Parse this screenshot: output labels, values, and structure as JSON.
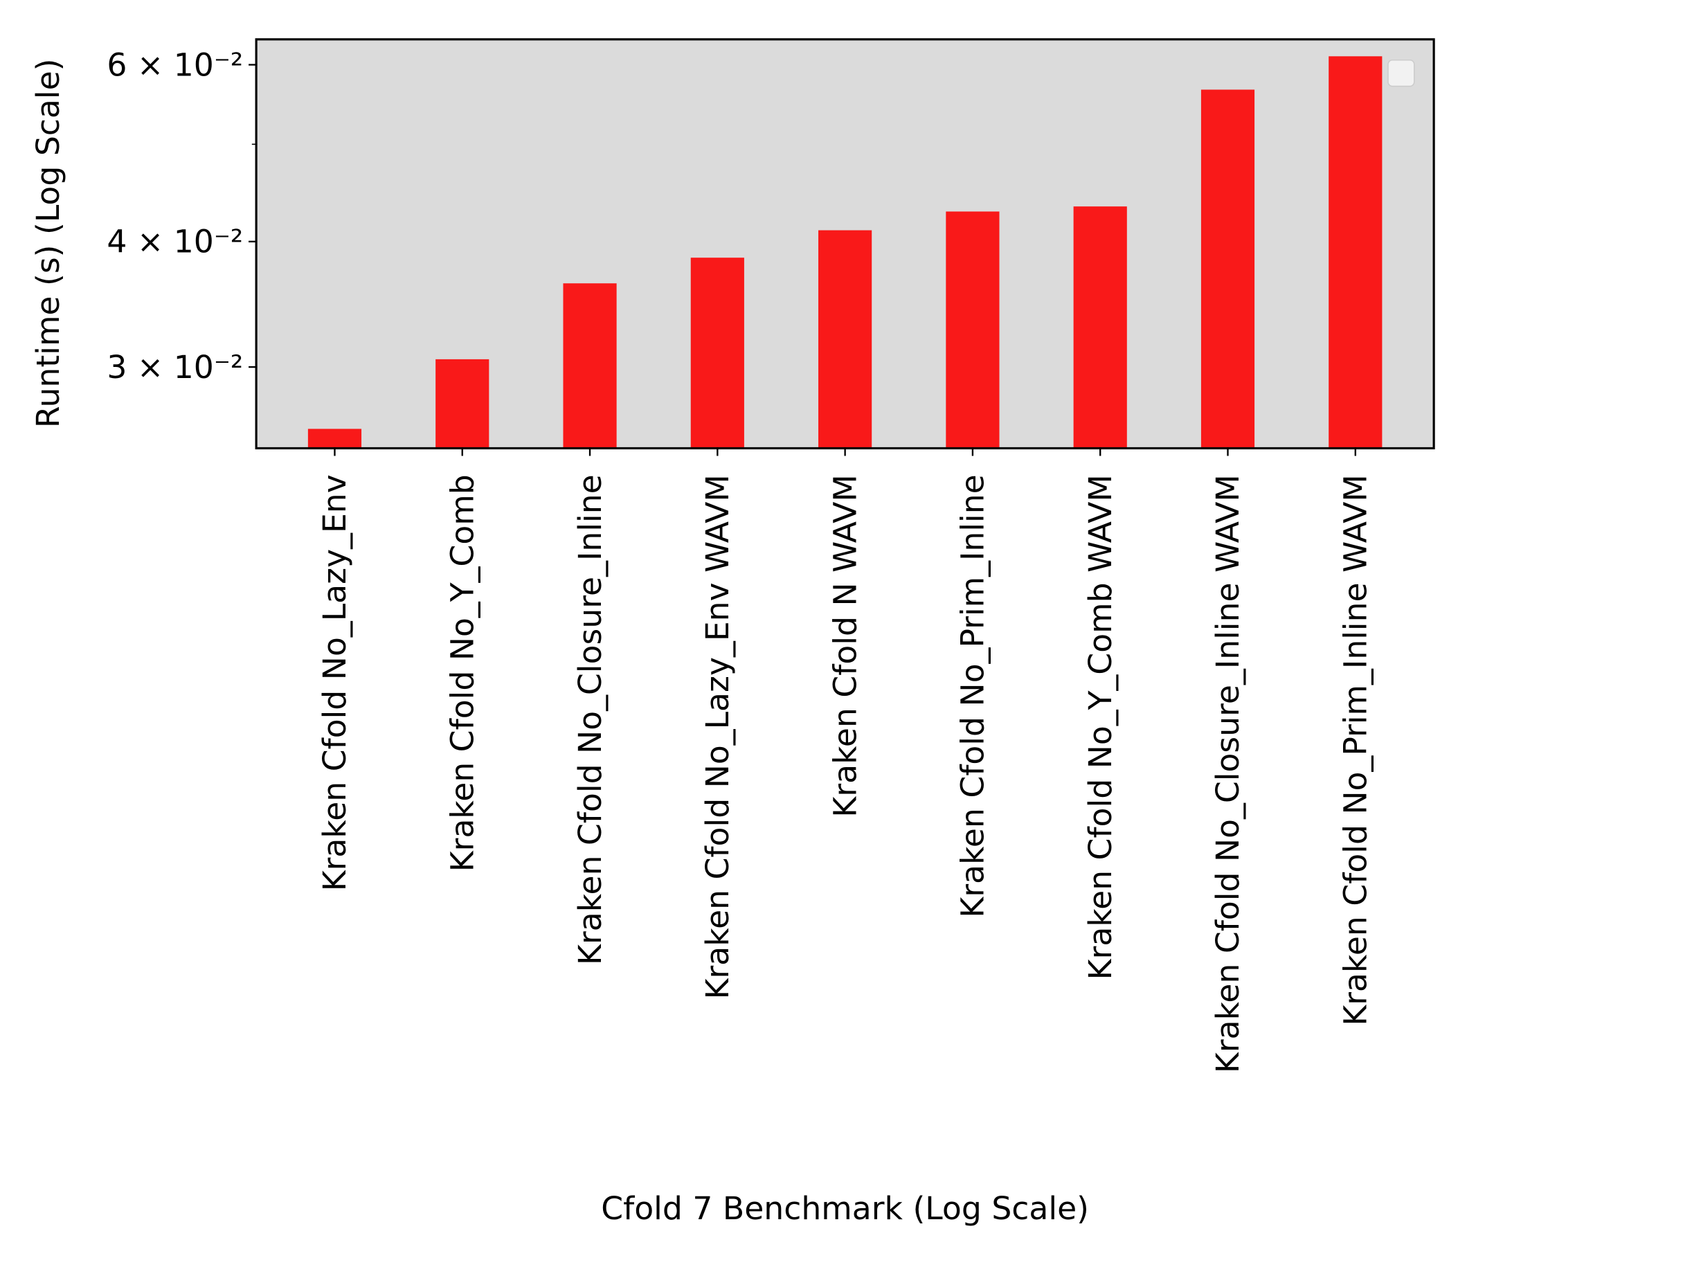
{
  "chart_data": {
    "type": "bar",
    "xlabel": "Cfold 7 Benchmark (Log Scale)",
    "ylabel": "Runtime (s) (Log Scale)",
    "categories": [
      "Kraken Cfold No_Lazy_Env",
      "Kraken Cfold No_Y_Comb",
      "Kraken Cfold No_Closure_Inline",
      "Kraken Cfold No_Lazy_Env WAVM",
      "Kraken Cfold N WAVM",
      "Kraken Cfold No_Prim_Inline",
      "Kraken Cfold No_Y_Comb WAVM",
      "Kraken Cfold No_Closure_Inline WAVM",
      "Kraken Cfold No_Prim_Inline WAVM"
    ],
    "values": [
      0.026,
      0.0305,
      0.0363,
      0.0385,
      0.041,
      0.0428,
      0.0433,
      0.0566,
      0.0611
    ],
    "color": "#f91919",
    "ylog": true,
    "ylim": [
      0.0249,
      0.0636
    ],
    "yticks": [
      {
        "value": 0.03,
        "label": "3 × 10⁻²"
      },
      {
        "value": 0.04,
        "label": "4 × 10⁻²"
      },
      {
        "value": 0.06,
        "label": "6 × 10⁻²"
      }
    ],
    "yminorticks": [
      0.05
    ]
  }
}
